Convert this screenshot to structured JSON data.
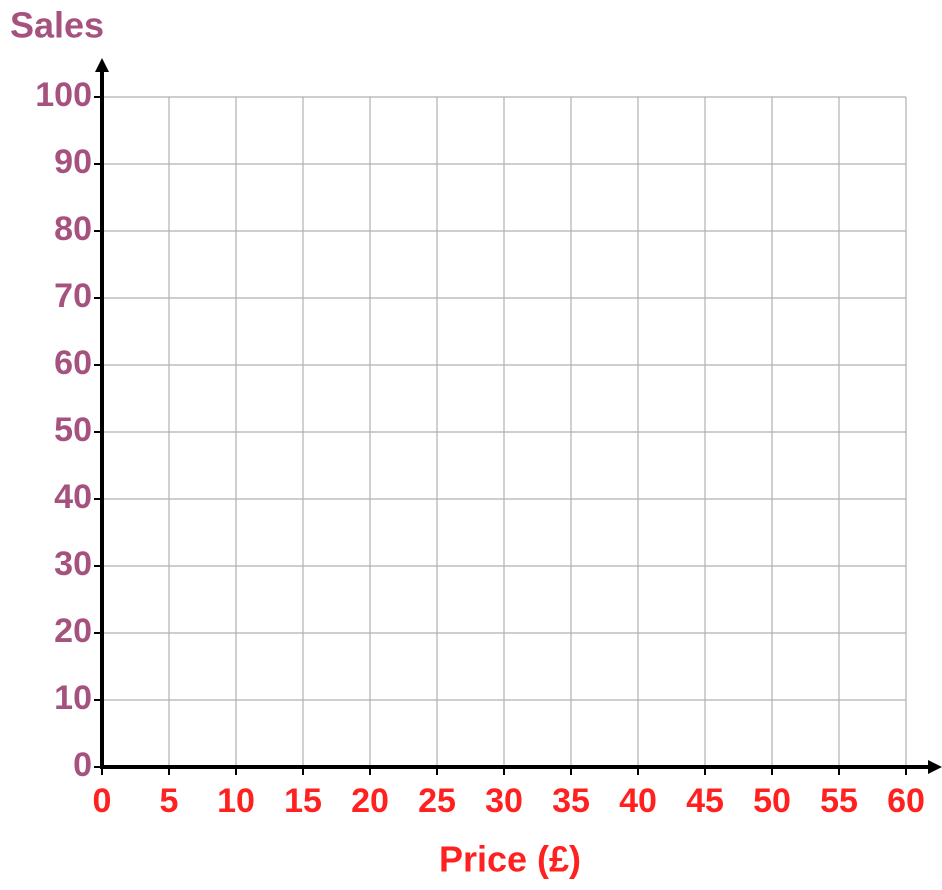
{
  "chart_data": {
    "type": "scatter",
    "y_label": "Sales",
    "x_label": "Price (£)",
    "xlim": [
      0,
      60
    ],
    "xticks": [
      0,
      5,
      10,
      15,
      20,
      25,
      30,
      35,
      40,
      45,
      50,
      55,
      60
    ],
    "ylim": [
      0,
      100
    ],
    "yticks": [
      0,
      10,
      20,
      30,
      40,
      50,
      60,
      70,
      80,
      90,
      100
    ],
    "grid": true,
    "grid_color": "#b0b0b0",
    "axis_color": "#000000",
    "x_label_color": "#ff2020",
    "y_label_color": "#a5527f",
    "series": []
  }
}
